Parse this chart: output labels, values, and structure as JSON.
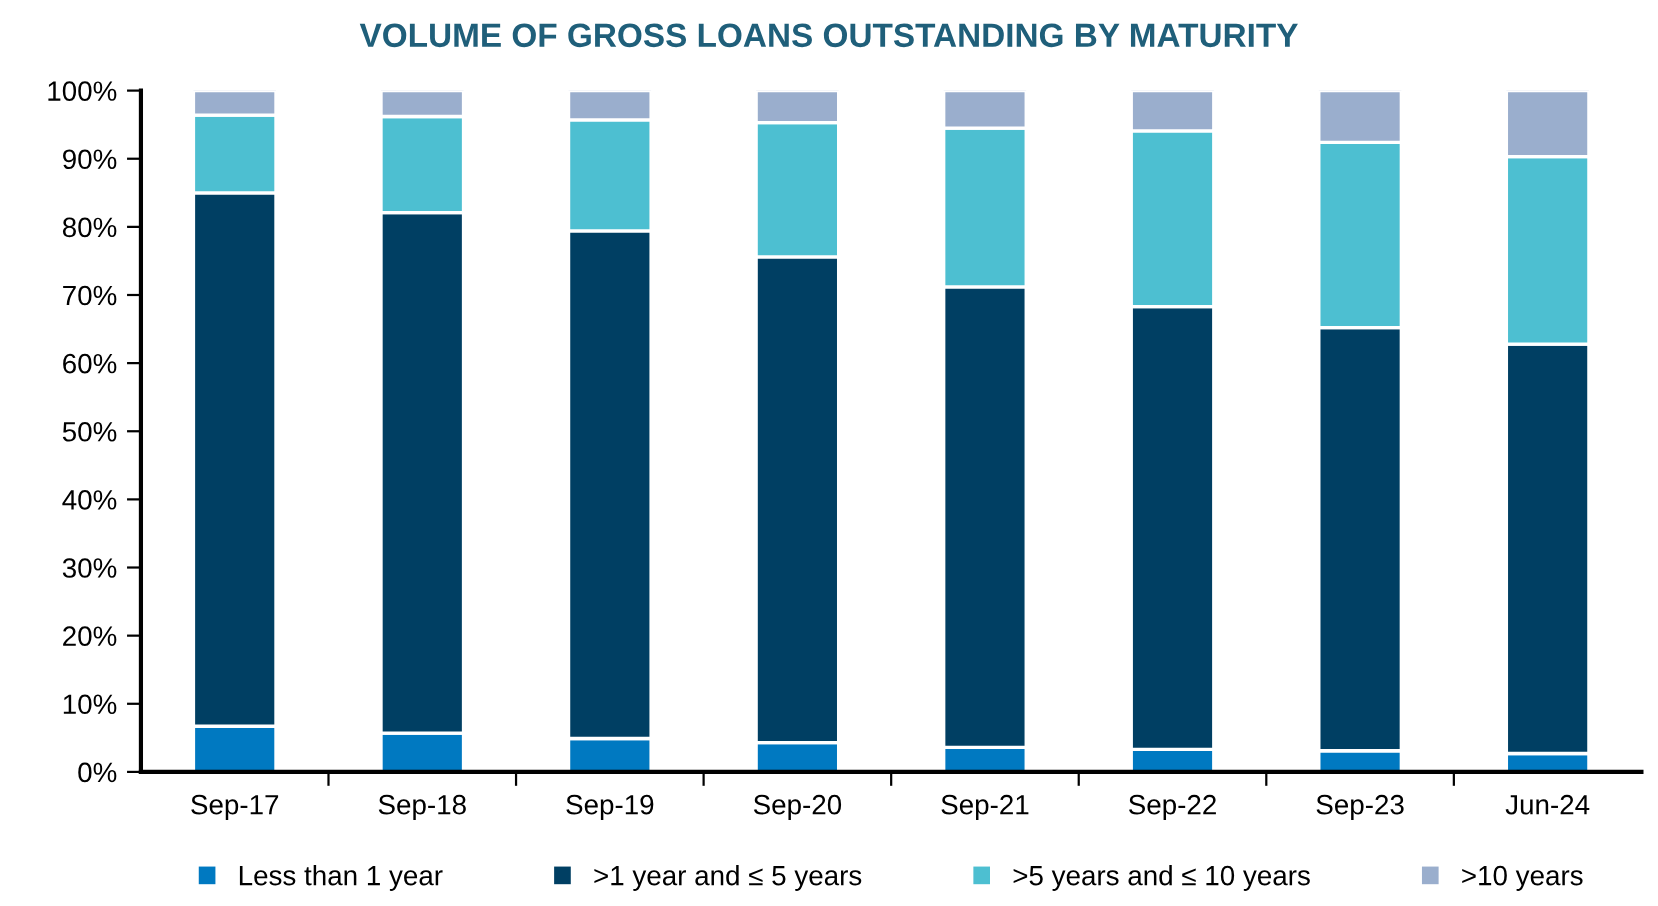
{
  "chart_data": {
    "type": "bar",
    "title": "VOLUME OF GROSS LOANS OUTSTANDING BY MATURITY",
    "stacked": true,
    "categories": [
      "Sep-17",
      "Sep-18",
      "Sep-19",
      "Sep-20",
      "Sep-21",
      "Sep-22",
      "Sep-23",
      "Jun-24"
    ],
    "series": [
      {
        "name": "Less than 1 year",
        "color": "#0079c1",
        "values": [
          6.7,
          5.7,
          4.9,
          4.3,
          3.6,
          3.3,
          3.1,
          2.7
        ]
      },
      {
        "name": ">1 year and ≤ 5 years",
        "color": "#003f63",
        "values": [
          78.3,
          76.4,
          74.5,
          71.3,
          67.6,
          65.0,
          62.1,
          60.1
        ]
      },
      {
        "name": ">5 years and ≤ 10 years",
        "color": "#4dbfd1",
        "values": [
          11.4,
          14.1,
          16.3,
          19.7,
          23.3,
          25.8,
          27.2,
          27.5
        ]
      },
      {
        "name": ">10 years",
        "color": "#9aaecd",
        "values": [
          3.6,
          3.8,
          4.3,
          4.7,
          5.5,
          5.9,
          7.6,
          9.7
        ]
      }
    ],
    "ylim": [
      0,
      100
    ],
    "yticks": [
      {
        "value": 0,
        "label": "0%"
      },
      {
        "value": 10,
        "label": "10%"
      },
      {
        "value": 20,
        "label": "20%"
      },
      {
        "value": 30,
        "label": "30%"
      },
      {
        "value": 40,
        "label": "40%"
      },
      {
        "value": 50,
        "label": "50%"
      },
      {
        "value": 60,
        "label": "60%"
      },
      {
        "value": 70,
        "label": "70%"
      },
      {
        "value": 80,
        "label": "80%"
      },
      {
        "value": 90,
        "label": "90%"
      },
      {
        "value": 100,
        "label": "100%"
      }
    ],
    "grid": false,
    "legend": "bottom"
  }
}
